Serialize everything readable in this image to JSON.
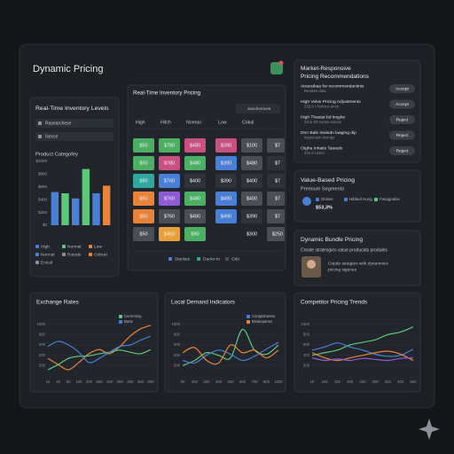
{
  "header": {
    "title": "Dynamic Pricing"
  },
  "inventory_levels": {
    "title": "Real-Time Inventory Levels",
    "inputs": [
      "Rasearchese",
      "Isecce"
    ],
    "chart": {
      "type": "bar",
      "title": "Product Categofey",
      "categories": [
        null,
        null,
        null,
        null,
        null,
        null
      ],
      "values": [
        520,
        500,
        420,
        880,
        500,
        620
      ],
      "colors": [
        "#4a7fd6",
        "#5cc87a",
        "#4a7fd6",
        "#5cc87a",
        "#4a7fd6",
        "#e8833a"
      ],
      "ylim": [
        0,
        1000
      ],
      "yticks": [
        {
          "value": 0,
          "label": "$0"
        },
        {
          "value": 200,
          "label": "$200"
        },
        {
          "value": 400,
          "label": "$400"
        },
        {
          "value": 600,
          "label": "$600"
        },
        {
          "value": 800,
          "label": "$800"
        },
        {
          "value": 1000,
          "label": "$1000"
        }
      ],
      "grid": false,
      "legend": [
        {
          "name": "High",
          "color": "#4a7fd6"
        },
        {
          "name": "Normal",
          "color": "#5cc87a"
        },
        {
          "name": "Low",
          "color": "#e8833a"
        },
        {
          "name": "Normal",
          "color": "#4a7fd6"
        },
        {
          "name": "Rotude",
          "color": "#8a8f99"
        },
        {
          "name": "Critical",
          "color": "#e8833a"
        },
        {
          "name": "Enical",
          "color": "#8a8f99"
        }
      ]
    }
  },
  "pricing_grid": {
    "title": "Real-Time Inventory Pricing",
    "dropdown": "Sacdcences",
    "columns": [
      "High",
      "Hitch",
      "Normal",
      "Low",
      "Crikal"
    ],
    "rows": [
      [
        {
          "text": "$50",
          "color": "#4caf63"
        },
        {
          "text": "$780",
          "color": "#4caf63"
        },
        {
          "text": "$480",
          "color": "#c9517f"
        },
        {
          "text": "$390",
          "color": "#c9517f"
        },
        {
          "text": "$100",
          "color": "#4a4e57"
        },
        {
          "text": "$7",
          "color": "#4a4e57"
        }
      ],
      [
        {
          "text": "$50",
          "color": "#4caf63"
        },
        {
          "text": "$780",
          "color": "#c9517f"
        },
        {
          "text": "$480",
          "color": "#4caf63"
        },
        {
          "text": "$390",
          "color": "#4a7fd6"
        },
        {
          "text": "$480",
          "color": "#4a4e57"
        },
        {
          "text": "$7",
          "color": "#2e3238"
        }
      ],
      [
        {
          "text": "$80",
          "color": "#2fa8a0"
        },
        {
          "text": "$760",
          "color": "#4a7fd6"
        },
        {
          "text": "$400",
          "color": "#2e3238"
        },
        {
          "text": "$390",
          "color": "#2e3238"
        },
        {
          "text": "$400",
          "color": "#2e3238"
        },
        {
          "text": "$7",
          "color": "#2e3238"
        }
      ],
      [
        {
          "text": "$50",
          "color": "#e8833a"
        },
        {
          "text": "$760",
          "color": "#8e5ad6"
        },
        {
          "text": "$480",
          "color": "#4caf63"
        },
        {
          "text": "$490",
          "color": "#4a7fd6"
        },
        {
          "text": "$400",
          "color": "#4a4e57"
        },
        {
          "text": "$7",
          "color": "#4a4e57"
        }
      ],
      [
        {
          "text": "$50",
          "color": "#e8833a"
        },
        {
          "text": "$760",
          "color": "#4a4e57"
        },
        {
          "text": "$480",
          "color": "#4a4e57"
        },
        {
          "text": "$490",
          "color": "#4a7fd6"
        },
        {
          "text": "$390",
          "color": "#2e3238"
        },
        {
          "text": "$7",
          "color": "#4a4e57"
        }
      ],
      [
        {
          "text": "$50",
          "color": "#4a4e57"
        },
        {
          "text": "$450",
          "color": "#e8a03a"
        },
        {
          "text": "$90",
          "color": "#4caf63"
        },
        null,
        {
          "text": "$300",
          "color": null
        },
        {
          "text": "$250",
          "color": "#4a4e57"
        }
      ]
    ],
    "footer": [
      {
        "name": "Stackes",
        "color": "#4a7fd6"
      },
      {
        "name": "Dacko to",
        "color": "#2fa8a0"
      },
      {
        "name": "Odo",
        "color": "#4a4e57"
      }
    ]
  },
  "recommendations": {
    "title": [
      "Market-Responsive",
      "Pricing Recommendations"
    ],
    "items": [
      {
        "title": "Atravsibaa for recommendaniints",
        "sub": "Reaises data",
        "action": "Accept"
      },
      {
        "title": "High Velve Pricing Adjustments",
        "sub": "Z33.9 I Rehuus anuo",
        "action": "Accept"
      },
      {
        "title": "High Thastat bd lnsghe",
        "sub": "S3 & 6D nuuso oooom",
        "action": "Reject"
      },
      {
        "title": "Dnn Baib inwisdn laaging dip",
        "sub": "Isigrement Instrigs",
        "action": "Reject"
      },
      {
        "title": "Otgha Inhaits Taieeds",
        "sub": "Z32.9 Uvers",
        "action": "Reject"
      }
    ]
  },
  "value_based": {
    "title": "Value-Based Pricing",
    "subtitle": "Premium Segments",
    "legend": [
      {
        "name": "Onsive",
        "color": "#4a7fd6"
      },
      {
        "name": "Hibbed Hung",
        "color": "#4a7fd6"
      },
      {
        "name": "Fasagnaloe",
        "color": "#5cc87a"
      }
    ],
    "value": "$53,3%"
  },
  "bundle": {
    "title": "Dynamic Bundle Pricing",
    "subtitle": "Create stratesgies value producats produles",
    "text_lines": [
      "Cnpde stratgies with dynamnics",
      "pricing sigenee"
    ]
  },
  "charts": [
    {
      "type": "line",
      "title": "Exchange Rates",
      "categories": [
        "10",
        "20",
        "50",
        "100",
        "200",
        "200",
        "250",
        "400",
        "200",
        "250",
        "300"
      ],
      "series": [
        {
          "color": "#e8833a",
          "values": [
            340,
            220,
            120,
            260,
            430,
            510,
            430,
            570,
            770,
            910,
            980
          ]
        },
        {
          "name": "Currennay",
          "color": "#5cc87a",
          "values": [
            120,
            220,
            340,
            380,
            390,
            430,
            460,
            500,
            460,
            430,
            510
          ]
        },
        {
          "name": "Barte",
          "color": "#4a7fd6",
          "values": [
            570,
            670,
            600,
            460,
            260,
            340,
            460,
            570,
            600,
            690,
            770
          ]
        }
      ],
      "ylim": [
        0,
        1200
      ],
      "yticks": [
        200,
        400,
        600,
        800,
        1000
      ],
      "grid": true
    },
    {
      "type": "line",
      "title": "Local Demand Indicators",
      "categories": [
        "80",
        "200",
        "300",
        "400",
        "500",
        "600",
        "700",
        "800",
        "1000"
      ],
      "series": [
        {
          "color": "#5cc87a",
          "values": [
            200,
            300,
            450,
            400,
            350,
            900,
            500,
            420,
            600
          ]
        },
        {
          "name": "Congashwess",
          "color": "#4a7fd6",
          "values": [
            300,
            250,
            400,
            500,
            420,
            300,
            380,
            520,
            650
          ]
        },
        {
          "name": "Bssaepanes",
          "color": "#e8833a",
          "values": [
            450,
            550,
            300,
            250,
            600,
            450,
            500,
            350,
            500
          ]
        }
      ],
      "ylim": [
        0,
        1200
      ],
      "yticks": [
        200,
        400,
        600,
        800,
        1000
      ],
      "grid": true
    },
    {
      "type": "line",
      "title": "Competitor Pricing Trends",
      "categories": [
        "10",
        "100",
        "150",
        "200",
        "250",
        "300",
        "350",
        "400",
        "500"
      ],
      "series": [
        {
          "color": "#5cc87a",
          "values": [
            400,
            450,
            500,
            600,
            650,
            700,
            800,
            850,
            950
          ]
        },
        {
          "color": "#4a7fd6",
          "values": [
            500,
            560,
            640,
            560,
            500,
            420,
            380,
            400,
            520
          ]
        },
        {
          "color": "#e8833a",
          "values": [
            450,
            350,
            300,
            350,
            400,
            450,
            480,
            420,
            300
          ]
        },
        {
          "color": "#8e5ad6",
          "values": [
            350,
            300,
            330,
            300,
            340,
            320,
            300,
            340,
            350
          ]
        }
      ],
      "ylim": [
        0,
        1200
      ],
      "yticks": [
        200,
        400,
        600,
        800,
        1000
      ],
      "grid": true
    }
  ]
}
